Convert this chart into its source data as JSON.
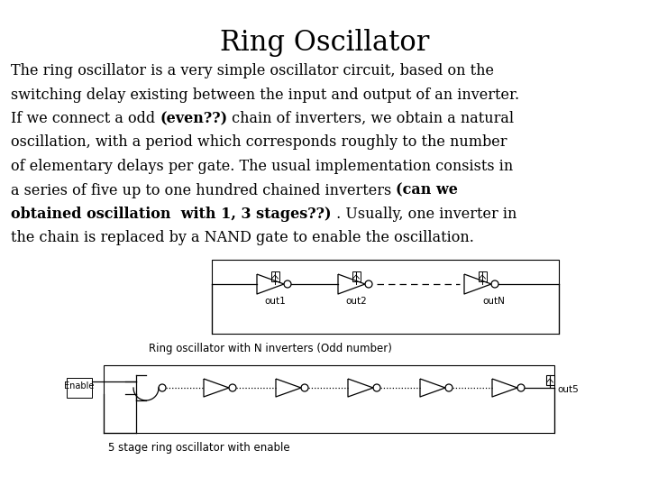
{
  "title": "Ring Oscillator",
  "title_fontsize": 22,
  "body_fontsize": 11.5,
  "bg_color": "#ffffff",
  "text_color": "#000000",
  "body_lines": [
    [
      [
        "The ring oscillator is a very simple oscillator circuit, based on the",
        false
      ]
    ],
    [
      [
        "switching delay existing between the input and output of an inverter.",
        false
      ]
    ],
    [
      [
        "If we connect a odd ",
        false
      ],
      [
        "(even??)",
        true
      ],
      [
        " chain of inverters, we obtain a natural",
        false
      ]
    ],
    [
      [
        "oscillation, with a period which corresponds roughly to the number",
        false
      ]
    ],
    [
      [
        "of elementary delays per gate. The usual implementation consists in",
        false
      ]
    ],
    [
      [
        "a series of five up to one hundred chained inverters ",
        false
      ],
      [
        "(can we",
        true
      ]
    ],
    [
      [
        "obtained oscillation  with 1, 3 stages??)",
        true
      ],
      [
        " . Usually, one inverter in",
        false
      ]
    ],
    [
      [
        "the chain is replaced by a NAND gate to enable the oscillation.",
        false
      ]
    ]
  ],
  "caption1": "Ring oscillator with N inverters (Odd number)",
  "caption2": "5 stage ring oscillator with enable",
  "caption_fontsize": 8.5
}
